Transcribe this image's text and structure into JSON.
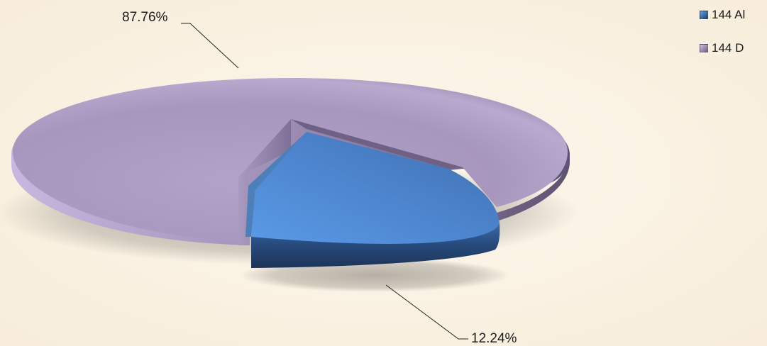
{
  "chart_data": {
    "type": "pie",
    "style": "3d-exploded",
    "slices": [
      {
        "label": "144 Al",
        "value": 12.24,
        "data_label": "12.24%",
        "color": "#4f86cc"
      },
      {
        "label": "144 D",
        "value": 87.76,
        "data_label": "87.76%",
        "color": "#b6a7cc"
      }
    ],
    "legend_position": "top-right",
    "background_color": "#fbf3e4"
  }
}
